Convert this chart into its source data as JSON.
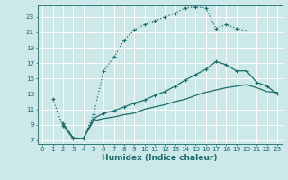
{
  "xlabel": "Humidex (Indice chaleur)",
  "bg_color": "#cce8e8",
  "grid_color": "#b8d8d8",
  "line_color": "#1a6b6b",
  "xlim": [
    -0.5,
    23.5
  ],
  "ylim": [
    6.5,
    24.5
  ],
  "xticks": [
    0,
    1,
    2,
    3,
    4,
    5,
    6,
    7,
    8,
    9,
    10,
    11,
    12,
    13,
    14,
    15,
    16,
    17,
    18,
    19,
    20,
    21,
    22,
    23
  ],
  "yticks": [
    7,
    9,
    11,
    13,
    15,
    17,
    19,
    21,
    23
  ],
  "curve1_x": [
    1,
    2,
    3,
    4,
    5,
    6,
    7,
    8,
    9,
    10,
    11,
    12,
    13,
    14,
    15,
    16,
    17,
    18,
    19,
    20
  ],
  "curve1_y": [
    12.3,
    8.8,
    7.2,
    7.2,
    10.3,
    16.0,
    17.8,
    20.0,
    21.3,
    22.0,
    22.5,
    23.0,
    23.5,
    24.2,
    24.3,
    24.2,
    21.5,
    22.0,
    21.5,
    21.2
  ],
  "curve2_x": [
    2,
    3,
    4,
    5,
    6,
    7,
    8,
    9,
    10,
    11,
    12,
    13,
    14,
    15,
    16,
    17,
    18,
    19,
    20,
    21,
    22,
    23
  ],
  "curve2_y": [
    9.2,
    7.3,
    7.2,
    9.8,
    10.5,
    10.8,
    11.3,
    11.8,
    12.2,
    12.8,
    13.3,
    14.0,
    14.8,
    15.5,
    16.2,
    17.2,
    16.8,
    16.0,
    16.0,
    14.5,
    14.0,
    13.0
  ],
  "curve3_x": [
    2,
    3,
    4,
    5,
    6,
    7,
    8,
    9,
    10,
    11,
    12,
    13,
    14,
    15,
    16,
    17,
    18,
    19,
    20,
    21,
    22,
    23
  ],
  "curve3_y": [
    9.0,
    7.2,
    7.2,
    9.5,
    9.8,
    10.0,
    10.3,
    10.5,
    11.0,
    11.3,
    11.6,
    12.0,
    12.3,
    12.8,
    13.2,
    13.5,
    13.8,
    14.0,
    14.2,
    13.8,
    13.3,
    13.2
  ],
  "xlabel_fontsize": 6.5,
  "tick_fontsize": 5.2
}
